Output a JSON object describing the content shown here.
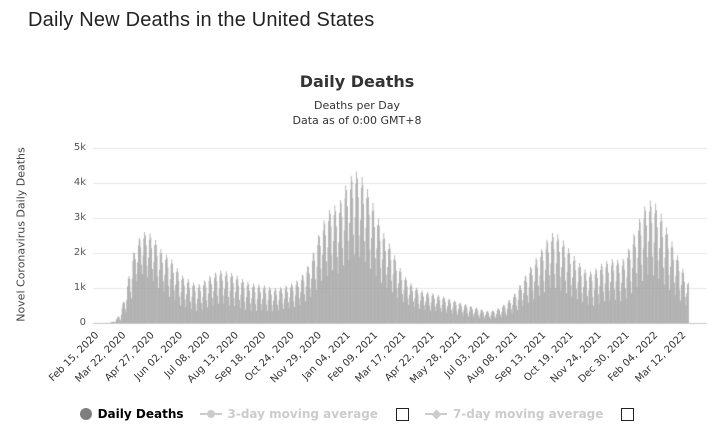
{
  "page": {
    "title": "Daily New Deaths in the United States"
  },
  "chart": {
    "title": "Daily Deaths",
    "subtitle_lines": [
      "Deaths per Day",
      "Data as of 0:00 GMT+8"
    ],
    "y_axis": {
      "title": "Novel Coronavirus Daily Deaths",
      "tick_labels": [
        "0",
        "1k",
        "2k",
        "3k",
        "4k",
        "5k"
      ],
      "max": 5000
    },
    "x_axis": {
      "tick_interval_days": 36,
      "tick_labels": [
        "Feb 15, 2020",
        "Mar 22, 2020",
        "Apr 27, 2020",
        "Jun 02, 2020",
        "Jul 08, 2020",
        "Aug 13, 2020",
        "Sep 18, 2020",
        "Oct 24, 2020",
        "Nov 29, 2020",
        "Jan 04, 2021",
        "Feb 09, 2021",
        "Mar 17, 2021",
        "Apr 22, 2021",
        "May 28, 2021",
        "Jul 03, 2021",
        "Aug 08, 2021",
        "Sep 13, 2021",
        "Oct 19, 2021",
        "Nov 24, 2021",
        "Dec 30, 2021",
        "Feb 04, 2022",
        "Mar 12, 2022"
      ]
    },
    "legend": [
      {
        "label": "Daily Deaths",
        "marker": "circle",
        "state": "active",
        "checkbox": false
      },
      {
        "label": "3-day moving average",
        "marker": "line-circle",
        "state": "disabled",
        "checkbox": true,
        "checked": false
      },
      {
        "label": "7-day moving average",
        "marker": "line-diamond",
        "state": "disabled",
        "checkbox": true,
        "checked": false
      }
    ],
    "colors": {
      "bar": "#9a9a9a",
      "grid": "#e6e6e6",
      "axis_line": "#c9c9c9",
      "legend_disabled": "#cccccc",
      "legend_marker": "#7e7e7e"
    }
  },
  "chart_data": {
    "type": "bar",
    "title": "Daily Deaths",
    "subtitle": "Deaths per Day — Data as of 0:00 GMT+8",
    "xlabel": "",
    "ylabel": "Novel Coronavirus Daily Deaths",
    "ylim": [
      0,
      5000
    ],
    "grid": "horizontal",
    "legend_position": "bottom",
    "x_start_date": "Feb 15, 2020",
    "x_end_date": "Mar 22, 2022",
    "days_total": 766,
    "x_tick_labels": [
      "Feb 15, 2020",
      "Mar 22, 2020",
      "Apr 27, 2020",
      "Jun 02, 2020",
      "Jul 08, 2020",
      "Aug 13, 2020",
      "Sep 18, 2020",
      "Oct 24, 2020",
      "Nov 29, 2020",
      "Jan 04, 2021",
      "Feb 09, 2021",
      "Mar 17, 2021",
      "Apr 22, 2021",
      "May 28, 2021",
      "Jul 03, 2021",
      "Aug 08, 2021",
      "Sep 13, 2021",
      "Oct 19, 2021",
      "Nov 24, 2021",
      "Dec 30, 2021",
      "Feb 04, 2022",
      "Mar 12, 2022"
    ],
    "series_name": "Daily Deaths",
    "weekly_envelope": {
      "description": "Weekly upper (reporting-day peak) and lower (weekend dip) daily-death values read from the chart; [day_index_from_Feb15_2020, high, low]. Daily bars oscillate between low and high within each week.",
      "points": [
        [
          0,
          2,
          0
        ],
        [
          20,
          6,
          1
        ],
        [
          28,
          60,
          15
        ],
        [
          35,
          300,
          80
        ],
        [
          42,
          900,
          300
        ],
        [
          49,
          1800,
          700
        ],
        [
          56,
          2300,
          1200
        ],
        [
          63,
          2600,
          1400
        ],
        [
          70,
          2600,
          1300
        ],
        [
          77,
          2500,
          1200
        ],
        [
          84,
          2200,
          1000
        ],
        [
          91,
          2000,
          900
        ],
        [
          98,
          1900,
          750
        ],
        [
          105,
          1700,
          650
        ],
        [
          112,
          1400,
          500
        ],
        [
          119,
          1300,
          450
        ],
        [
          126,
          1200,
          400
        ],
        [
          133,
          1100,
          350
        ],
        [
          140,
          1150,
          380
        ],
        [
          147,
          1300,
          450
        ],
        [
          154,
          1400,
          500
        ],
        [
          161,
          1500,
          550
        ],
        [
          168,
          1500,
          550
        ],
        [
          175,
          1450,
          500
        ],
        [
          182,
          1400,
          480
        ],
        [
          189,
          1300,
          430
        ],
        [
          196,
          1200,
          380
        ],
        [
          203,
          1150,
          350
        ],
        [
          210,
          1100,
          350
        ],
        [
          217,
          1100,
          360
        ],
        [
          224,
          1050,
          350
        ],
        [
          231,
          1000,
          340
        ],
        [
          238,
          1000,
          360
        ],
        [
          245,
          1050,
          400
        ],
        [
          252,
          1100,
          430
        ],
        [
          259,
          1150,
          460
        ],
        [
          266,
          1300,
          520
        ],
        [
          273,
          1500,
          620
        ],
        [
          280,
          1800,
          750
        ],
        [
          287,
          2300,
          950
        ],
        [
          294,
          2800,
          1200
        ],
        [
          301,
          3100,
          1350
        ],
        [
          308,
          3400,
          1500
        ],
        [
          315,
          3300,
          1400
        ],
        [
          322,
          3800,
          1650
        ],
        [
          329,
          4100,
          1800
        ],
        [
          336,
          4350,
          1950
        ],
        [
          343,
          4300,
          1900
        ],
        [
          350,
          4000,
          1750
        ],
        [
          357,
          3600,
          1550
        ],
        [
          364,
          3200,
          1350
        ],
        [
          371,
          2700,
          1150
        ],
        [
          378,
          2400,
          1000
        ],
        [
          385,
          2100,
          880
        ],
        [
          392,
          1700,
          720
        ],
        [
          399,
          1400,
          600
        ],
        [
          406,
          1200,
          520
        ],
        [
          413,
          1050,
          450
        ],
        [
          420,
          950,
          400
        ],
        [
          427,
          900,
          380
        ],
        [
          434,
          870,
          360
        ],
        [
          441,
          820,
          340
        ],
        [
          448,
          770,
          320
        ],
        [
          455,
          720,
          300
        ],
        [
          462,
          670,
          270
        ],
        [
          469,
          610,
          240
        ],
        [
          476,
          560,
          220
        ],
        [
          483,
          510,
          190
        ],
        [
          490,
          460,
          170
        ],
        [
          497,
          410,
          150
        ],
        [
          504,
          360,
          130
        ],
        [
          511,
          340,
          120
        ],
        [
          518,
          380,
          140
        ],
        [
          525,
          470,
          170
        ],
        [
          532,
          580,
          220
        ],
        [
          539,
          750,
          290
        ],
        [
          546,
          950,
          370
        ],
        [
          553,
          1250,
          480
        ],
        [
          560,
          1500,
          580
        ],
        [
          567,
          1750,
          680
        ],
        [
          574,
          2000,
          780
        ],
        [
          581,
          2250,
          880
        ],
        [
          588,
          2550,
          1000
        ],
        [
          595,
          2600,
          1000
        ],
        [
          602,
          2450,
          930
        ],
        [
          609,
          2250,
          850
        ],
        [
          616,
          2000,
          760
        ],
        [
          623,
          1800,
          680
        ],
        [
          630,
          1600,
          600
        ],
        [
          637,
          1450,
          530
        ],
        [
          644,
          1500,
          500
        ],
        [
          651,
          1650,
          560
        ],
        [
          658,
          1750,
          620
        ],
        [
          665,
          1800,
          650
        ],
        [
          672,
          1850,
          660
        ],
        [
          679,
          1750,
          620
        ],
        [
          686,
          1950,
          700
        ],
        [
          693,
          2350,
          850
        ],
        [
          700,
          2800,
          1020
        ],
        [
          707,
          3200,
          1200
        ],
        [
          714,
          3500,
          1380
        ],
        [
          721,
          3500,
          1360
        ],
        [
          728,
          3300,
          1260
        ],
        [
          735,
          2900,
          1100
        ],
        [
          742,
          2500,
          950
        ],
        [
          749,
          2100,
          800
        ],
        [
          756,
          1700,
          640
        ],
        [
          763,
          1350,
          510
        ],
        [
          766,
          1150,
          450
        ]
      ]
    },
    "weekday_profile": [
      0.0,
      0.45,
      0.85,
      1.0,
      0.92,
      0.7,
      0.25
    ]
  }
}
